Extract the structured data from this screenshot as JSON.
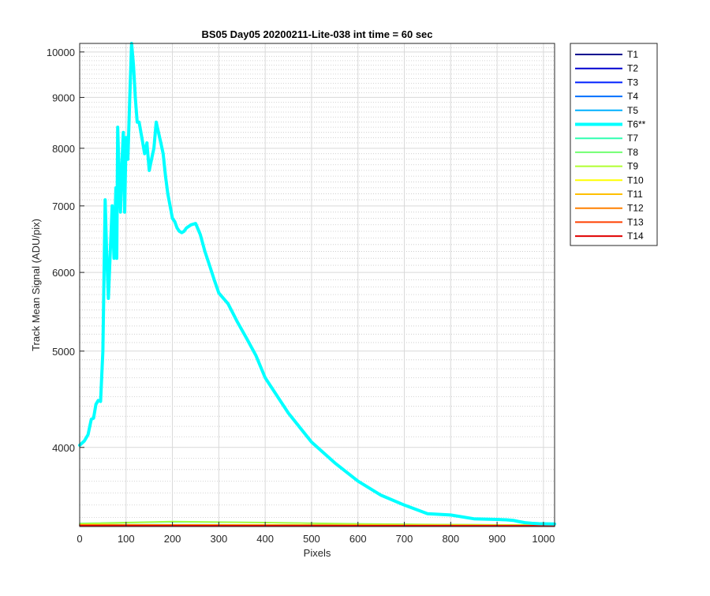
{
  "chart_data": {
    "type": "line",
    "title": "BS05 Day05 20200211-Lite-038 int time = 60 sec",
    "xlabel": "Pixels",
    "ylabel": "Track Mean Signal (ADU/pix)",
    "x_scale": "linear",
    "y_scale": "log",
    "xlim": [
      0,
      1024
    ],
    "ylim": [
      3330,
      10200
    ],
    "x_ticks": [
      0,
      100,
      200,
      300,
      400,
      500,
      600,
      700,
      800,
      900,
      1000
    ],
    "x_tick_labels": [
      "0",
      "100",
      "200",
      "300",
      "400",
      "500",
      "600",
      "700",
      "800",
      "900",
      "1000"
    ],
    "y_ticks": [
      4000,
      5000,
      6000,
      7000,
      8000,
      9000,
      10000
    ],
    "y_tick_labels": [
      "4000",
      "5000",
      "6000",
      "7000",
      "8000",
      "9000",
      "10000"
    ],
    "grid": true,
    "minor_grid": true,
    "legend_position": "outside-right",
    "series": [
      {
        "name": "T1",
        "color": "#00008f",
        "x": [
          0,
          1024
        ],
        "y": [
          3340,
          3338
        ]
      },
      {
        "name": "T2",
        "color": "#0000d0",
        "x": [
          0,
          1024
        ],
        "y": [
          3341,
          3339
        ]
      },
      {
        "name": "T3",
        "color": "#0020ff",
        "x": [
          0,
          1024
        ],
        "y": [
          3342,
          3339
        ]
      },
      {
        "name": "T4",
        "color": "#0070ff",
        "x": [
          0,
          1024
        ],
        "y": [
          3344,
          3340
        ]
      },
      {
        "name": "T5",
        "color": "#00b0ff",
        "x": [
          0,
          1024
        ],
        "y": [
          3346,
          3340
        ]
      },
      {
        "name": "T6**",
        "color": "#00ffff",
        "highlight": true,
        "x": [
          0,
          10,
          18,
          25,
          30,
          35,
          40,
          45,
          50,
          55,
          58,
          62,
          66,
          70,
          74,
          78,
          80,
          82,
          85,
          88,
          91,
          94,
          97,
          100,
          104,
          108,
          112,
          116,
          120,
          124,
          128,
          134,
          140,
          145,
          150,
          155,
          160,
          165,
          170,
          175,
          180,
          185,
          190,
          195,
          200,
          205,
          210,
          215,
          220,
          225,
          230,
          240,
          250,
          260,
          270,
          280,
          290,
          300,
          320,
          340,
          360,
          380,
          400,
          450,
          500,
          550,
          600,
          650,
          700,
          750,
          800,
          850,
          900,
          920,
          935,
          945,
          960,
          975,
          990,
          1024
        ],
        "y": [
          4020,
          4060,
          4120,
          4270,
          4280,
          4420,
          4460,
          4450,
          5000,
          7100,
          6300,
          5650,
          6300,
          7000,
          6200,
          7300,
          6200,
          8400,
          7500,
          6900,
          7700,
          8300,
          6900,
          8200,
          7800,
          9000,
          10200,
          9700,
          9000,
          8500,
          8500,
          8200,
          7900,
          8100,
          7600,
          7800,
          8000,
          8500,
          8300,
          8100,
          7900,
          7500,
          7200,
          7000,
          6800,
          6750,
          6650,
          6600,
          6580,
          6600,
          6650,
          6700,
          6720,
          6550,
          6300,
          6100,
          5900,
          5720,
          5580,
          5350,
          5150,
          4950,
          4700,
          4330,
          4050,
          3860,
          3700,
          3580,
          3500,
          3430,
          3420,
          3390,
          3385,
          3382,
          3378,
          3370,
          3360,
          3355,
          3352,
          3350
        ]
      },
      {
        "name": "T7",
        "color": "#30ffb0",
        "x": [
          0,
          200,
          400,
          600,
          800,
          1024
        ],
        "y": [
          3352,
          3365,
          3360,
          3350,
          3345,
          3342
        ]
      },
      {
        "name": "T8",
        "color": "#70ff70",
        "x": [
          0,
          200,
          400,
          600,
          800,
          1024
        ],
        "y": [
          3355,
          3370,
          3362,
          3352,
          3346,
          3342
        ]
      },
      {
        "name": "T9",
        "color": "#b0ff30",
        "x": [
          0,
          200,
          400,
          600,
          800,
          1024
        ],
        "y": [
          3350,
          3368,
          3360,
          3350,
          3345,
          3341
        ]
      },
      {
        "name": "T10",
        "color": "#ffff00",
        "x": [
          0,
          1024
        ],
        "y": [
          3345,
          3340
        ]
      },
      {
        "name": "T11",
        "color": "#ffc000",
        "x": [
          0,
          1024
        ],
        "y": [
          3343,
          3339
        ]
      },
      {
        "name": "T12",
        "color": "#ff8000",
        "x": [
          0,
          1024
        ],
        "y": [
          3342,
          3338
        ]
      },
      {
        "name": "T13",
        "color": "#ff4000",
        "x": [
          0,
          1024
        ],
        "y": [
          3340,
          3337
        ]
      },
      {
        "name": "T14",
        "color": "#e00000",
        "x": [
          0,
          1024
        ],
        "y": [
          3338,
          3336
        ]
      }
    ]
  }
}
